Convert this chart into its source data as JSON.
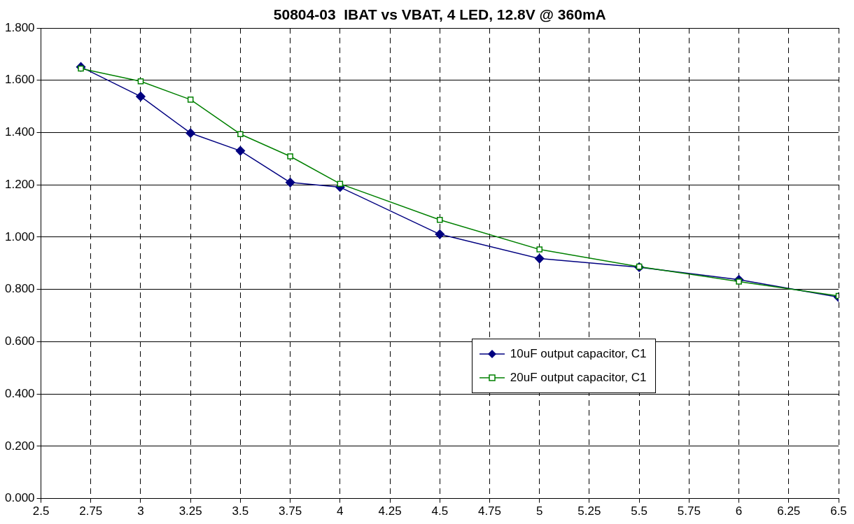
{
  "chart_data": {
    "type": "line",
    "title": "50804-03  IBAT vs VBAT, 4 LED, 12.8V @ 360mA",
    "xlim": [
      2.5,
      6.5
    ],
    "xticks": [
      2.5,
      2.75,
      3,
      3.25,
      3.5,
      3.75,
      4,
      4.25,
      4.5,
      4.75,
      5,
      5.25,
      5.5,
      5.75,
      6,
      6.25,
      6.5
    ],
    "ylim": [
      0,
      1.8
    ],
    "yticks": [
      {
        "value": 0,
        "label": "0.000"
      },
      {
        "value": 0.2,
        "label": "0.200"
      },
      {
        "value": 0.4,
        "label": "0.400"
      },
      {
        "value": 0.6,
        "label": "0.600"
      },
      {
        "value": 0.8,
        "label": "0.800"
      },
      {
        "value": 1,
        "label": "1.000"
      },
      {
        "value": 1.2,
        "label": "1.200"
      },
      {
        "value": 1.4,
        "label": "1.400"
      },
      {
        "value": 1.6,
        "label": "1.600"
      },
      {
        "value": 1.8,
        "label": "1.800"
      }
    ],
    "grid": true,
    "legend": "right",
    "line_style": "solid",
    "series": [
      {
        "name": "10uF output capacitor, C1",
        "color": "#000080",
        "marker": "diamond",
        "x": [
          2.7,
          3,
          3.25,
          3.5,
          3.75,
          4,
          4.5,
          5,
          5.5,
          6,
          6.5
        ],
        "values": [
          1.651,
          1.538,
          1.398,
          1.33,
          1.209,
          1.191,
          1.011,
          0.918,
          0.885,
          0.837,
          0.77
        ]
      },
      {
        "name": "20uF output capacitor, C1",
        "color": "#008000",
        "marker": "square",
        "x": [
          2.7,
          3,
          3.25,
          3.5,
          3.75,
          4,
          4.5,
          5,
          5.5,
          6,
          6.5
        ],
        "values": [
          1.645,
          1.596,
          1.526,
          1.394,
          1.309,
          1.204,
          1.066,
          0.953,
          0.887,
          0.83,
          0.775
        ]
      }
    ]
  }
}
